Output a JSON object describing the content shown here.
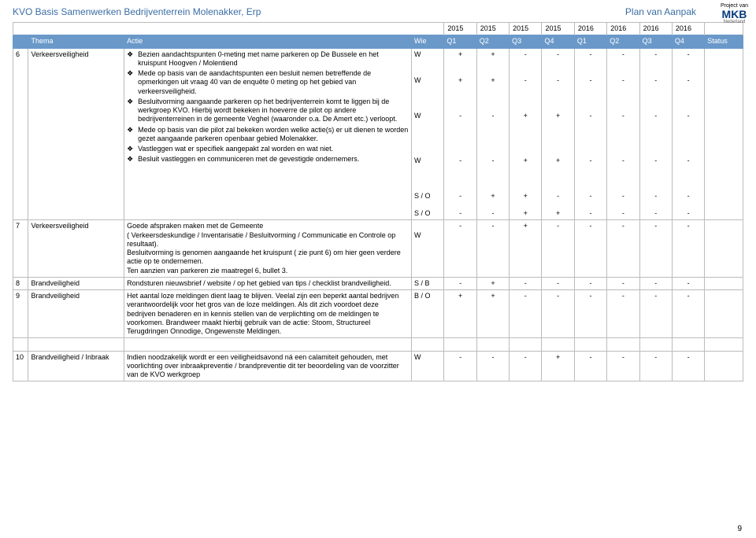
{
  "header": {
    "doc_title": "KVO Basis Samenwerken Bedrijventerrein Molenakker, Erp",
    "plan": "Plan van Aanpak",
    "logo_top": "Project van",
    "logo_main": "MKB",
    "logo_sub": "Nederland"
  },
  "years": [
    "2015",
    "2015",
    "2015",
    "2015",
    "2016",
    "2016",
    "2016",
    "2016"
  ],
  "head": {
    "thema": "Thema",
    "actie": "Actie",
    "wie": "Wie",
    "q": [
      "Q1",
      "Q2",
      "Q3",
      "Q4",
      "Q1",
      "Q2",
      "Q3",
      "Q4"
    ],
    "status": "Status"
  },
  "rows": [
    {
      "n": "6",
      "thema": "Verkeersveiligheid",
      "bullets": [
        "Bezien aandachtspunten 0-meting met name parkeren op De Bussele en het kruispunt Hoogven / Molentiend",
        "Mede op basis van de aandachtspunten een besluit nemen betreffende de opmerkingen uit vraag 40 van de enquête 0 meting op het gebied van verkeersveiligheid.",
        "Besluitvorming aangaande parkeren op het bedrijventerrein komt te liggen bij de werkgroep KVO. Hierbij wordt bekeken in hoeverre de pilot op andere bedrijventerreinen in de gemeente Veghel (waaronder o.a. De Amert etc.) verloopt.",
        "Mede op basis van die pilot zal bekeken worden welke actie(s) er uit dienen te worden gezet aangaande parkeren openbaar gebied Molenakker.",
        "Vastleggen wat er specifiek aangepakt zal worden en wat niet.",
        "Besluit vastleggen en communiceren met de gevestigde ondernemers."
      ],
      "wie_lines": [
        "W",
        "",
        "",
        "W",
        "",
        "",
        "",
        "W",
        "",
        "",
        "",
        "",
        "W",
        "",
        "",
        "",
        "S / O",
        "",
        "S / O"
      ],
      "marks": [
        [
          "+",
          "",
          "",
          "+",
          "",
          "",
          "",
          "-",
          "",
          "",
          "",
          "",
          "-",
          "",
          "",
          "",
          "-",
          "",
          "-"
        ],
        [
          "+",
          "",
          "",
          "+",
          "",
          "",
          "",
          "-",
          "",
          "",
          "",
          "",
          "-",
          "",
          "",
          "",
          "+",
          "",
          "-"
        ],
        [
          "-",
          "",
          "",
          "-",
          "",
          "",
          "",
          "+",
          "",
          "",
          "",
          "",
          "+",
          "",
          "",
          "",
          "+",
          "",
          "+"
        ],
        [
          "-",
          "",
          "",
          "-",
          "",
          "",
          "",
          "+",
          "",
          "",
          "",
          "",
          "+",
          "",
          "",
          "",
          "-",
          "",
          "+"
        ],
        [
          "-",
          "",
          "",
          "-",
          "",
          "",
          "",
          "-",
          "",
          "",
          "",
          "",
          "-",
          "",
          "",
          "",
          "-",
          "",
          "-"
        ],
        [
          "-",
          "",
          "",
          "-",
          "",
          "",
          "",
          "-",
          "",
          "",
          "",
          "",
          "-",
          "",
          "",
          "",
          "-",
          "",
          "-"
        ],
        [
          "-",
          "",
          "",
          "-",
          "",
          "",
          "",
          "-",
          "",
          "",
          "",
          "",
          "-",
          "",
          "",
          "",
          "-",
          "",
          "-"
        ],
        [
          "-",
          "",
          "",
          "-",
          "",
          "",
          "",
          "-",
          "",
          "",
          "",
          "",
          "-",
          "",
          "",
          "",
          "-",
          "",
          "-"
        ]
      ],
      "status": ""
    },
    {
      "n": "7",
      "thema": "Verkeersveiligheid",
      "text": "Goede afspraken maken met de Gemeente\n( Verkeersdeskundige / Inventarisatie / Besluitvorming / Communicatie en Controle op resultaat).\nBesluitvorming is genomen aangaande het kruispunt ( zie punt 6) om hier geen verdere actie op te ondernemen.\nTen aanzien van parkeren zie maatregel 6, bullet 3.",
      "wie_lines": [
        "",
        "W"
      ],
      "marks": [
        [
          "-"
        ],
        [
          "-"
        ],
        [
          "+"
        ],
        [
          "-"
        ],
        [
          "-"
        ],
        [
          "-"
        ],
        [
          "-"
        ],
        [
          "-"
        ]
      ],
      "status": ""
    },
    {
      "n": "8",
      "thema": "Brandveiligheid",
      "text": "Rondsturen nieuwsbrief / website / op het gebied van tips / checklist brandveiligheid.",
      "wie_lines": [
        "S / B"
      ],
      "marks": [
        [
          "-"
        ],
        [
          "+"
        ],
        [
          "-"
        ],
        [
          "-"
        ],
        [
          "-"
        ],
        [
          "-"
        ],
        [
          "-"
        ],
        [
          "-"
        ]
      ],
      "status": ""
    },
    {
      "n": "9",
      "thema": "Brandveiligheid",
      "text": "Het aantal loze meldingen dient laag te blijven. Veelal zijn een beperkt aantal bedrijven verantwoordelijk voor het gros van de loze meldingen. Als dit zich voordoet deze bedrijven benaderen en in kennis stellen van de verplichting om de meldingen te voorkomen. Brandweer maakt hierbij gebruik van de actie: Stoom, Structureel Terugdringen Onnodige, Ongewenste Meldingen.",
      "wie_lines": [
        "B / O"
      ],
      "marks": [
        [
          "+"
        ],
        [
          "+"
        ],
        [
          "-"
        ],
        [
          "-"
        ],
        [
          "-"
        ],
        [
          "-"
        ],
        [
          "-"
        ],
        [
          "-"
        ]
      ],
      "status": ""
    },
    {
      "n": "10",
      "thema": "Brandveiligheid / Inbraak",
      "text": "Indien noodzakelijk wordt er een veiligheidsavond ná een calamiteit gehouden, met voorlichting over inbraakpreventie / brandpreventie dit ter beoordeling van de voorzitter van de KVO werkgroep",
      "wie_lines": [
        "W"
      ],
      "marks": [
        [
          "-"
        ],
        [
          "-"
        ],
        [
          "-"
        ],
        [
          "+"
        ],
        [
          "-"
        ],
        [
          "-"
        ],
        [
          "-"
        ],
        [
          "-"
        ]
      ],
      "status": ""
    }
  ],
  "page_number": "9"
}
